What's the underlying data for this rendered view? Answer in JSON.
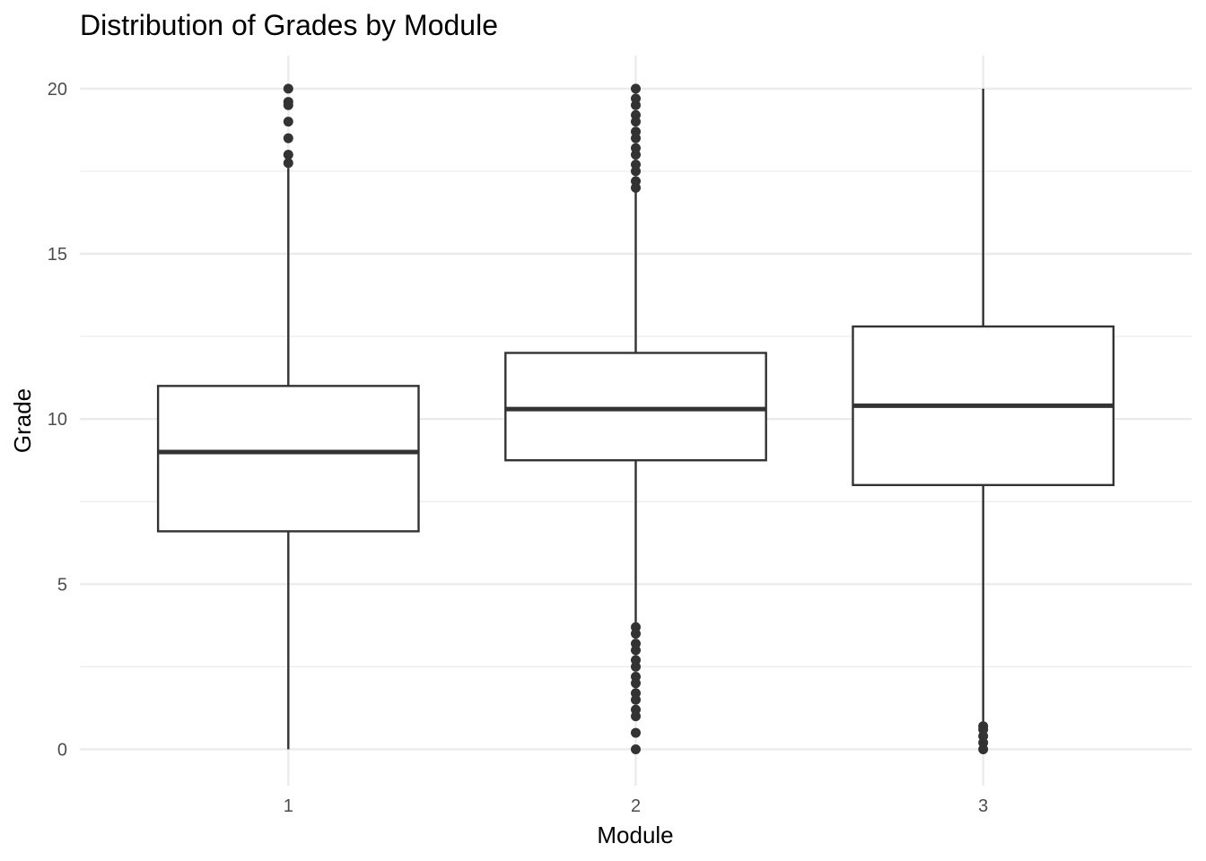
{
  "chart_data": {
    "type": "box",
    "title": "Distribution of Grades by Module",
    "xlabel": "Module",
    "ylabel": "Grade",
    "categories": [
      "1",
      "2",
      "3"
    ],
    "ylim": [
      -1.1,
      21.0
    ],
    "y_ticks": [
      0,
      5,
      10,
      15,
      20
    ],
    "y_tick_labels": [
      "0",
      "5",
      "10",
      "15",
      "20"
    ],
    "y_minor_ticks": [
      2.5,
      7.5,
      12.5,
      17.5
    ],
    "grid": true,
    "legend": "none",
    "colors": {
      "box_stroke": "#333333",
      "box_fill": "#ffffff",
      "grid": "#ebebeb",
      "tick_text": "#4d4d4d"
    },
    "boxes": [
      {
        "module": "1",
        "whisker_low": 0.0,
        "q1": 6.6,
        "median": 9.0,
        "q3": 11.0,
        "whisker_high": 17.6,
        "outliers": [
          17.75,
          18.0,
          18.5,
          19.0,
          19.5,
          19.6,
          20.0
        ]
      },
      {
        "module": "2",
        "whisker_low": 3.8,
        "q1": 8.75,
        "median": 10.3,
        "q3": 12.0,
        "whisker_high": 16.9,
        "outliers": [
          0.0,
          0.5,
          1.0,
          1.2,
          1.5,
          1.7,
          2.0,
          2.2,
          2.5,
          2.7,
          3.0,
          3.2,
          3.5,
          3.7,
          17.0,
          17.2,
          17.5,
          17.7,
          18.0,
          18.2,
          18.5,
          18.7,
          19.0,
          19.2,
          19.5,
          19.7,
          20.0
        ]
      },
      {
        "module": "3",
        "whisker_low": 0.8,
        "q1": 8.0,
        "median": 10.4,
        "q3": 12.8,
        "whisker_high": 20.0,
        "outliers": [
          0.0,
          0.2,
          0.4,
          0.6,
          0.7
        ]
      }
    ]
  }
}
